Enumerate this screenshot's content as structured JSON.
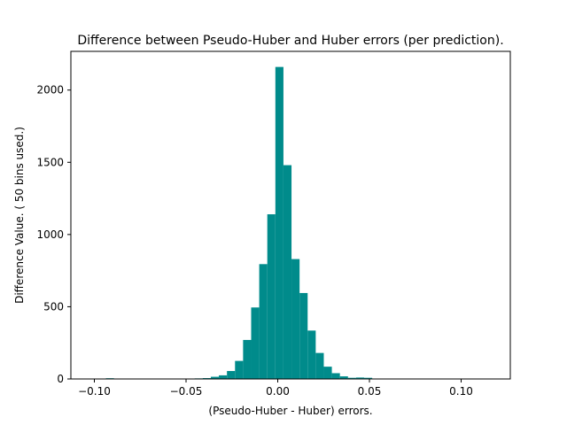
{
  "chart_data": {
    "type": "bar",
    "title": "Difference between  Pseudo-Huber and Huber errors (per prediction).",
    "xlabel": "(Pseudo-Huber - Huber) errors.",
    "ylabel": "Difference Value. ( 50 bins used.)",
    "xlim": [
      -0.1128,
      0.1268
    ],
    "ylim": [
      0,
      2268
    ],
    "xticks": [
      -0.1,
      -0.05,
      0.0,
      0.05,
      0.1
    ],
    "xtick_labels": [
      "−0.10",
      "−0.05",
      "0.00",
      "0.05",
      "0.10"
    ],
    "yticks": [
      0,
      500,
      1000,
      1500,
      2000
    ],
    "ytick_labels": [
      "0",
      "500",
      "1000",
      "1500",
      "2000"
    ],
    "grid": false,
    "bar_color": "#008b8b",
    "bins": [
      {
        "x0": -0.1025,
        "x1": -0.0981,
        "count": 0
      },
      {
        "x0": -0.0981,
        "x1": -0.0937,
        "count": 0
      },
      {
        "x0": -0.0937,
        "x1": -0.0893,
        "count": 5
      },
      {
        "x0": -0.0893,
        "x1": -0.0849,
        "count": 0
      },
      {
        "x0": -0.0849,
        "x1": -0.0805,
        "count": 0
      },
      {
        "x0": -0.0805,
        "x1": -0.0761,
        "count": 0
      },
      {
        "x0": -0.0761,
        "x1": -0.0717,
        "count": 0
      },
      {
        "x0": -0.0717,
        "x1": -0.0673,
        "count": 0
      },
      {
        "x0": -0.0673,
        "x1": -0.0629,
        "count": 0
      },
      {
        "x0": -0.0629,
        "x1": -0.0585,
        "count": 0
      },
      {
        "x0": -0.0585,
        "x1": -0.0541,
        "count": 0
      },
      {
        "x0": -0.0541,
        "x1": -0.0497,
        "count": 3
      },
      {
        "x0": -0.0497,
        "x1": -0.0453,
        "count": 3
      },
      {
        "x0": -0.0453,
        "x1": -0.0409,
        "count": 4
      },
      {
        "x0": -0.0409,
        "x1": -0.0365,
        "count": 6
      },
      {
        "x0": -0.0365,
        "x1": -0.0321,
        "count": 15
      },
      {
        "x0": -0.0321,
        "x1": -0.0277,
        "count": 25
      },
      {
        "x0": -0.0277,
        "x1": -0.0233,
        "count": 55
      },
      {
        "x0": -0.0233,
        "x1": -0.0189,
        "count": 125
      },
      {
        "x0": -0.0189,
        "x1": -0.0145,
        "count": 270
      },
      {
        "x0": -0.0145,
        "x1": -0.0101,
        "count": 495
      },
      {
        "x0": -0.0101,
        "x1": -0.0057,
        "count": 795
      },
      {
        "x0": -0.0057,
        "x1": -0.0013,
        "count": 1140
      },
      {
        "x0": -0.0013,
        "x1": 0.0031,
        "count": 2160
      },
      {
        "x0": 0.0031,
        "x1": 0.0075,
        "count": 1480
      },
      {
        "x0": 0.0075,
        "x1": 0.0119,
        "count": 830
      },
      {
        "x0": 0.0119,
        "x1": 0.0163,
        "count": 595
      },
      {
        "x0": 0.0163,
        "x1": 0.0207,
        "count": 335
      },
      {
        "x0": 0.0207,
        "x1": 0.0251,
        "count": 180
      },
      {
        "x0": 0.0251,
        "x1": 0.0295,
        "count": 85
      },
      {
        "x0": 0.0295,
        "x1": 0.0339,
        "count": 40
      },
      {
        "x0": 0.0339,
        "x1": 0.0383,
        "count": 18
      },
      {
        "x0": 0.0383,
        "x1": 0.0427,
        "count": 8
      },
      {
        "x0": 0.0427,
        "x1": 0.0471,
        "count": 10
      },
      {
        "x0": 0.0471,
        "x1": 0.0515,
        "count": 8
      },
      {
        "x0": 0.0515,
        "x1": 0.0559,
        "count": 0
      },
      {
        "x0": 0.0559,
        "x1": 0.0603,
        "count": 0
      },
      {
        "x0": 0.0603,
        "x1": 0.0647,
        "count": 0
      },
      {
        "x0": 0.0647,
        "x1": 0.0691,
        "count": 0
      },
      {
        "x0": 0.0691,
        "x1": 0.0735,
        "count": 0
      },
      {
        "x0": 0.0735,
        "x1": 0.0779,
        "count": 0
      },
      {
        "x0": 0.0779,
        "x1": 0.0823,
        "count": 0
      },
      {
        "x0": 0.0823,
        "x1": 0.0867,
        "count": 0
      },
      {
        "x0": 0.0867,
        "x1": 0.0911,
        "count": 0
      },
      {
        "x0": 0.0911,
        "x1": 0.0955,
        "count": 0
      },
      {
        "x0": 0.0955,
        "x1": 0.0999,
        "count": 0
      },
      {
        "x0": 0.0999,
        "x1": 0.1043,
        "count": 0
      },
      {
        "x0": 0.1043,
        "x1": 0.1087,
        "count": 0
      },
      {
        "x0": 0.1087,
        "x1": 0.1131,
        "count": 0
      },
      {
        "x0": 0.1131,
        "x1": 0.1175,
        "count": 0
      }
    ]
  }
}
